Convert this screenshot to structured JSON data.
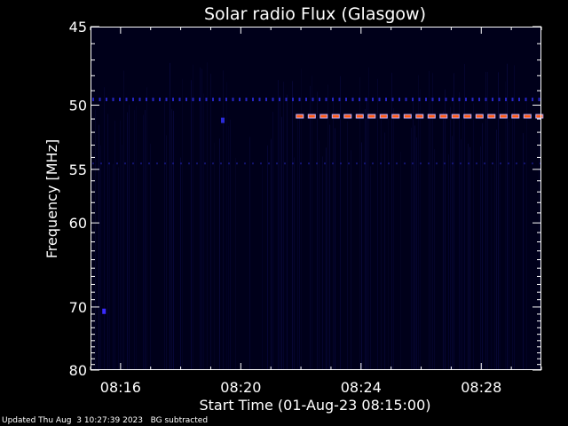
{
  "chart_data": {
    "type": "heatmap",
    "title": "Solar radio Flux (Glasgow)",
    "xlabel": "Start Time (01-Aug-23 08:15:00)",
    "ylabel": "Frequency [MHz]",
    "xlim_minutes_after_08_00": [
      15.0,
      30.0
    ],
    "ylim": [
      45,
      80
    ],
    "x_ticks": [
      {
        "minute": 16,
        "label": "08:16"
      },
      {
        "minute": 20,
        "label": "08:20"
      },
      {
        "minute": 24,
        "label": "08:24"
      },
      {
        "minute": 28,
        "label": "08:28"
      }
    ],
    "y_ticks": [
      {
        "value": 45,
        "label": "45"
      },
      {
        "value": 50,
        "label": "50"
      },
      {
        "value": 55,
        "label": "55"
      },
      {
        "value": 60,
        "label": "60"
      },
      {
        "value": 70,
        "label": "70"
      },
      {
        "value": 80,
        "label": "80"
      }
    ],
    "features": [
      {
        "kind": "dashed-band",
        "frequency": 49.6,
        "minute_start": 15.0,
        "minute_end": 30.0,
        "intensity": "low"
      },
      {
        "kind": "dashed-band",
        "frequency": 50.8,
        "minute_start": 21.8,
        "minute_end": 30.0,
        "intensity": "high"
      },
      {
        "kind": "dashed-band",
        "frequency": 54.5,
        "minute_start": 15.0,
        "minute_end": 30.0,
        "intensity": "very-low"
      },
      {
        "kind": "spot",
        "frequency": 51.1,
        "minute": 19.4,
        "intensity": "low"
      },
      {
        "kind": "spot",
        "frequency": 70.6,
        "minute": 15.45,
        "intensity": "medium"
      }
    ],
    "colors": {
      "background": "#000000",
      "plot_background": "#00001a",
      "low": "#2a2ad8",
      "medium": "#3a2aff",
      "high_core": "#ff5a10",
      "high_halo": "#c0b0ff",
      "axes": "#ffffff"
    }
  },
  "footer": {
    "updated": "Updated Thu Aug  3 10:27:39 2023",
    "note": "BG subtracted"
  }
}
